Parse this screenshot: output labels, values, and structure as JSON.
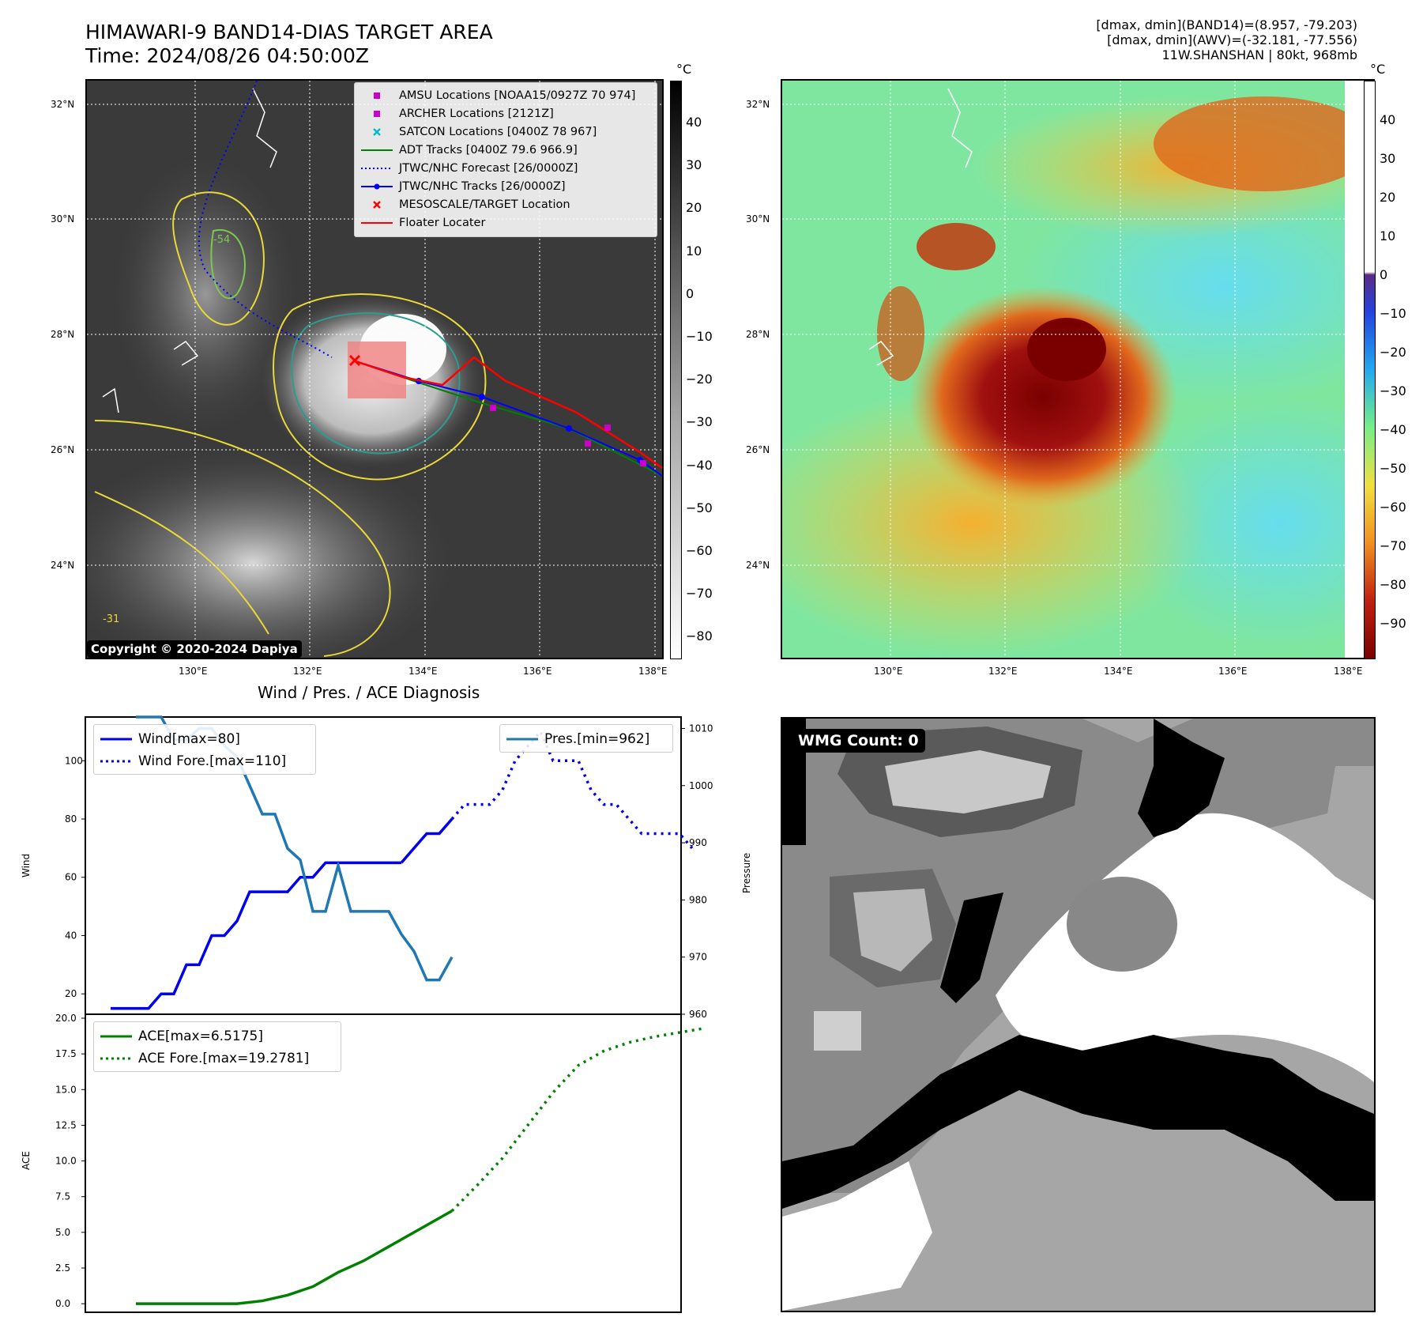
{
  "header": {
    "title_line1": "HIMAWARI-9 BAND14-DIAS TARGET AREA",
    "title_line2": "Time: 2024/08/26 04:50:00Z",
    "info_line1": "[dmax, dmin](BAND14)=(8.957, -79.203)",
    "info_line2": "[dmax, dmin](AWV)=(-32.181, -77.556)",
    "info_line3": "11W.SHANSHAN | 80kt, 968mb"
  },
  "map_panels": {
    "lat_labels": [
      "32°N",
      "30°N",
      "28°N",
      "26°N",
      "24°N"
    ],
    "lon_labels": [
      "130°E",
      "132°E",
      "134°E",
      "136°E",
      "138°E"
    ],
    "copyright": "Copyright © 2020-2024 Dapiya",
    "legend": [
      {
        "label": "AMSU Locations [NOAA15/0927Z 70 974]",
        "symbol": "square",
        "color": "#cc00cc"
      },
      {
        "label": "ARCHER Locations [2121Z]",
        "symbol": "square",
        "color": "#cc00cc"
      },
      {
        "label": "SATCON Locations [0400Z 78 967]",
        "symbol": "x",
        "color": "#00bbcc"
      },
      {
        "label": "ADT Tracks [0400Z 79.6 966.9]",
        "symbol": "line",
        "color": "#008000"
      },
      {
        "label": "JTWC/NHC Forecast [26/0000Z]",
        "symbol": "dotted",
        "color": "#0000ff"
      },
      {
        "label": "JTWC/NHC Tracks [26/0000Z]",
        "symbol": "line-dot",
        "color": "#0000ff"
      },
      {
        "label": "MESOSCALE/TARGET Location",
        "symbol": "x",
        "color": "#ff0000"
      },
      {
        "label": "Floater Locater",
        "symbol": "line",
        "color": "#ff0000"
      }
    ],
    "contour_label": "-31",
    "contour_label_2": "-54",
    "colorbar_unit": "°C",
    "colorbar1_ticks": [
      "40",
      "30",
      "20",
      "10",
      "0",
      "−10",
      "−20",
      "−30",
      "−40",
      "−50",
      "−60",
      "−70",
      "−80"
    ],
    "colorbar2_ticks": [
      "40",
      "30",
      "20",
      "10",
      "0",
      "−10",
      "−20",
      "−30",
      "−40",
      "−50",
      "−60",
      "−70",
      "−80",
      "−90"
    ]
  },
  "diagnosis": {
    "title": "Wind / Pres. / ACE Diagnosis",
    "wind_ylabel": "Wind",
    "pres_ylabel": "Pressure",
    "ace_ylabel": "ACE",
    "legend_wind": "Wind[max=80]",
    "legend_wind_fore": "Wind Fore.[max=110]",
    "legend_pres": "Pres.[min=962]",
    "legend_ace": "ACE[max=6.5175]",
    "legend_ace_fore": "ACE Fore.[max=19.2781]",
    "colors": {
      "wind": "#0000ee",
      "pres": "#1f77b4",
      "ace": "#008000"
    }
  },
  "wmg": {
    "label": "WMG Count: 0"
  },
  "chart_data": [
    {
      "type": "line",
      "title": "Wind / Pres. / ACE Diagnosis",
      "ylabel": "Wind",
      "ylim": [
        13,
        115
      ],
      "yticks": [
        20,
        40,
        60,
        80,
        100
      ],
      "series": [
        {
          "name": "Wind[max=80]",
          "style": "solid",
          "x": [
            0,
            1,
            2,
            3,
            4,
            5,
            6,
            7,
            8,
            9,
            10,
            11,
            12,
            13,
            14,
            15,
            16,
            17,
            18,
            19,
            20,
            21,
            22,
            23
          ],
          "values": [
            15,
            15,
            15,
            15,
            20,
            20,
            30,
            30,
            40,
            40,
            45,
            55,
            55,
            55,
            55,
            60,
            60,
            65,
            65,
            65,
            65,
            65,
            65,
            65
          ]
        },
        {
          "name": "Wind[max=80] tail",
          "style": "solid",
          "x": [
            23,
            24,
            25,
            26,
            27
          ],
          "values": [
            65,
            70,
            75,
            75,
            80
          ]
        },
        {
          "name": "Wind Fore.[max=110]",
          "style": "dotted",
          "x": [
            27,
            28,
            29,
            30,
            31,
            32,
            33,
            34,
            35,
            36,
            37,
            38,
            39,
            40,
            41,
            42,
            43,
            44,
            45,
            46
          ],
          "values": [
            80,
            85,
            85,
            85,
            90,
            100,
            105,
            110,
            100,
            100,
            100,
            90,
            85,
            85,
            80,
            75,
            75,
            75,
            75,
            70
          ]
        }
      ]
    },
    {
      "type": "line",
      "ylabel": "Pressure",
      "ylim": [
        960,
        1012
      ],
      "yticks": [
        960,
        970,
        980,
        990,
        1000,
        1010
      ],
      "series": [
        {
          "name": "Pres.[min=962]",
          "x": [
            2,
            3,
            4,
            5,
            6,
            7,
            8,
            9,
            10,
            11,
            12,
            13,
            14,
            15,
            16,
            17,
            18,
            19,
            20,
            21,
            22,
            23,
            24,
            25,
            26,
            27
          ],
          "values": [
            1012,
            1012,
            1012,
            1008,
            1008,
            1010,
            1010,
            1007,
            1005,
            1000,
            995,
            995,
            989,
            987,
            978,
            978,
            986,
            978,
            978,
            978,
            978,
            974,
            971,
            966,
            966,
            970
          ]
        }
      ]
    },
    {
      "type": "line",
      "ylabel": "ACE",
      "ylim": [
        -0.6,
        20.0
      ],
      "yticks": [
        0.0,
        2.5,
        5.0,
        7.5,
        10.0,
        12.5,
        15.0,
        17.5,
        20.0
      ],
      "series": [
        {
          "name": "ACE[max=6.5175]",
          "style": "solid",
          "x": [
            2,
            5,
            8,
            10,
            12,
            14,
            16,
            18,
            20,
            22,
            24,
            27
          ],
          "values": [
            0,
            0,
            0,
            0,
            0.2,
            0.6,
            1.2,
            2.2,
            3.0,
            4.0,
            5.0,
            6.5
          ]
        },
        {
          "name": "ACE Fore.[max=19.2781]",
          "style": "dotted",
          "x": [
            27,
            29,
            31,
            33,
            35,
            37,
            39,
            41,
            43,
            45,
            47
          ],
          "values": [
            6.5,
            8.3,
            10.2,
            12.5,
            14.8,
            16.7,
            17.7,
            18.3,
            18.7,
            19.0,
            19.3
          ]
        }
      ]
    }
  ]
}
